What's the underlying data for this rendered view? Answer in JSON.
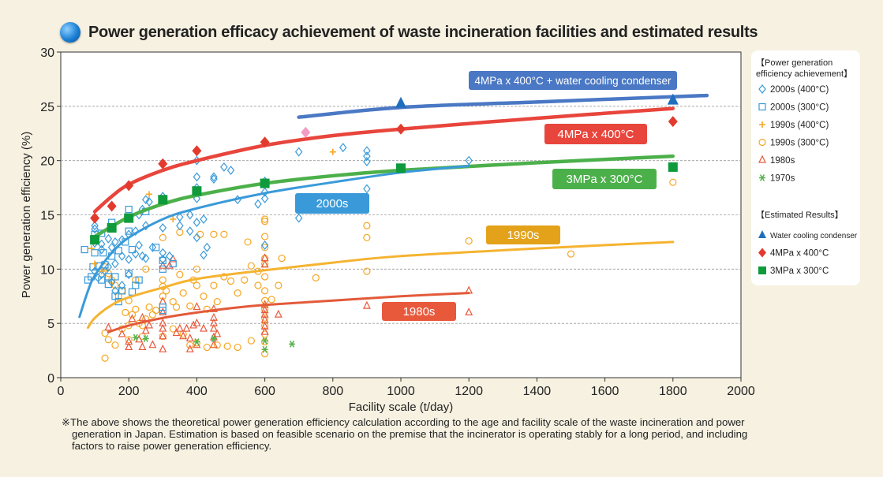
{
  "title": "Power generation efficacy achievement of waste incineration facilities and estimated results",
  "note": {
    "line1": "※The above shows the theoretical power generation efficiency calculation according to the age and facility scale of the waste incineration and power",
    "line2": "generation in Japan. Estimation is based on feasible scenario on the premise that the incinerator is operating stably for a long period, and including",
    "line3": "factors to raise power generation efficiency."
  },
  "chart_data": {
    "type": "scatter",
    "xlabel": "Facility scale (t/day)",
    "ylabel": "Power generation efficiency (%)",
    "xlim": [
      0,
      2000
    ],
    "ylim": [
      0,
      30
    ],
    "xticks": [
      0,
      200,
      400,
      600,
      800,
      1000,
      1200,
      1400,
      1600,
      1800,
      2000
    ],
    "yticks": [
      0,
      5,
      10,
      15,
      20,
      25,
      30
    ],
    "grid": "horizontal dashed",
    "legend_position": "right",
    "legend": {
      "achievement_title": "【Power generation efficiency achievement】",
      "estimated_title": "【Estimated Results】",
      "achievement_items": [
        {
          "key": "s2000_400",
          "label": "2000s (400°C)",
          "marker": "diamond-open",
          "color": "#3a9ad9"
        },
        {
          "key": "s2000_300",
          "label": "2000s (300°C)",
          "marker": "square-open",
          "color": "#3a9ad9"
        },
        {
          "key": "s1990_400",
          "label": "1990s (400°C)",
          "marker": "plus",
          "color": "#f5a623"
        },
        {
          "key": "s1990_300",
          "label": "1990s (300°C)",
          "marker": "circle-open",
          "color": "#f5a623"
        },
        {
          "key": "s1980",
          "label": "1980s",
          "marker": "triangle-open",
          "color": "#e8593c"
        },
        {
          "key": "s1970",
          "label": "1970s",
          "marker": "asterisk",
          "color": "#55b24a"
        }
      ],
      "estimated_items": [
        {
          "key": "est_wc",
          "label": "Water cooling condenser",
          "marker": "triangle",
          "color": "#1f6fbf"
        },
        {
          "key": "est_4",
          "label": "4MPa x 400°C",
          "marker": "diamond",
          "color": "#e23b2e"
        },
        {
          "key": "est_3",
          "label": "3MPa x 300°C",
          "marker": "square",
          "color": "#0f9a3c"
        }
      ]
    },
    "estimated": {
      "water_cooling_condenser": {
        "x": [
          1000,
          1800
        ],
        "y": [
          25.3,
          25.6
        ]
      },
      "mpa4_400": {
        "x": [
          100,
          150,
          200,
          300,
          400,
          600,
          1000,
          1800
        ],
        "y": [
          14.7,
          15.8,
          17.7,
          19.7,
          20.9,
          21.7,
          22.9,
          23.6
        ]
      },
      "mpa3_300": {
        "x": [
          100,
          150,
          200,
          300,
          400,
          600,
          1000,
          1800
        ],
        "y": [
          12.7,
          13.8,
          14.7,
          16.4,
          17.2,
          17.9,
          19.3,
          19.4
        ]
      },
      "highlight_point": {
        "x": 720,
        "y": 22.6
      }
    },
    "achievement": {
      "s2000_400": [
        [
          700,
          20.8
        ],
        [
          830,
          21.2
        ],
        [
          900,
          20.9
        ],
        [
          900,
          20.4
        ],
        [
          900,
          19.9
        ],
        [
          900,
          17.4
        ],
        [
          1200,
          20.0
        ],
        [
          700,
          14.7
        ],
        [
          500,
          19.1
        ],
        [
          480,
          19.4
        ],
        [
          400,
          18.5
        ],
        [
          400,
          17.5
        ],
        [
          450,
          18.5
        ],
        [
          450,
          18.3
        ],
        [
          520,
          16.4
        ],
        [
          600,
          17.1
        ],
        [
          600,
          16.5
        ],
        [
          580,
          16.0
        ],
        [
          300,
          16.7
        ],
        [
          250,
          16.4
        ],
        [
          260,
          16.2
        ],
        [
          240,
          15.5
        ],
        [
          230,
          15.0
        ],
        [
          400,
          16.5
        ],
        [
          380,
          15.0
        ],
        [
          350,
          14.8
        ],
        [
          400,
          14.3
        ],
        [
          350,
          14.0
        ],
        [
          300,
          13.8
        ],
        [
          250,
          14.0
        ],
        [
          220,
          13.5
        ],
        [
          200,
          13.2
        ],
        [
          180,
          12.7
        ],
        [
          160,
          12.5
        ],
        [
          150,
          12.0
        ],
        [
          140,
          12.8
        ],
        [
          120,
          12.3
        ],
        [
          100,
          13.7
        ],
        [
          100,
          14.0
        ],
        [
          120,
          11.8
        ],
        [
          230,
          12.2
        ],
        [
          270,
          12.0
        ],
        [
          300,
          11.5
        ],
        [
          320,
          11.2
        ],
        [
          300,
          10.9
        ],
        [
          250,
          11.0
        ],
        [
          240,
          11.2
        ],
        [
          220,
          11.4
        ],
        [
          200,
          10.9
        ],
        [
          180,
          11.2
        ],
        [
          160,
          10.5
        ],
        [
          140,
          10.2
        ],
        [
          130,
          9.8
        ],
        [
          120,
          9.5
        ],
        [
          110,
          9.2
        ],
        [
          100,
          9.8
        ],
        [
          200,
          9.5
        ],
        [
          180,
          8.5
        ],
        [
          160,
          8.0
        ],
        [
          150,
          8.8
        ],
        [
          400,
          12.9
        ],
        [
          420,
          11.3
        ],
        [
          430,
          12.0
        ],
        [
          600,
          12.2
        ],
        [
          380,
          13.5
        ],
        [
          420,
          14.6
        ],
        [
          100,
          12.4
        ],
        [
          600,
          18.1
        ],
        [
          400,
          20.0
        ]
      ],
      "s2000_300": [
        [
          70,
          11.8
        ],
        [
          80,
          9.0
        ],
        [
          90,
          9.3
        ],
        [
          95,
          10.2
        ],
        [
          100,
          11.5
        ],
        [
          100,
          12.8
        ],
        [
          110,
          10.3
        ],
        [
          120,
          9.0
        ],
        [
          125,
          11.5
        ],
        [
          130,
          10.4
        ],
        [
          140,
          9.3
        ],
        [
          150,
          11.2
        ],
        [
          160,
          9.3
        ],
        [
          170,
          11.7
        ],
        [
          180,
          8.0
        ],
        [
          190,
          12.5
        ],
        [
          200,
          13.5
        ],
        [
          210,
          11.8
        ],
        [
          150,
          14.3
        ],
        [
          120,
          13.3
        ],
        [
          100,
          13.2
        ],
        [
          200,
          9.6
        ],
        [
          210,
          7.9
        ],
        [
          220,
          8.5
        ],
        [
          230,
          9.0
        ],
        [
          300,
          10.0
        ],
        [
          300,
          10.8
        ],
        [
          330,
          10.5
        ],
        [
          300,
          6.2
        ],
        [
          300,
          6.5
        ],
        [
          160,
          7.5
        ],
        [
          170,
          7.0
        ],
        [
          140,
          8.6
        ],
        [
          200,
          15.5
        ],
        [
          250,
          15.3
        ],
        [
          280,
          12.0
        ]
      ],
      "s1990_400": [
        [
          90,
          11.9
        ],
        [
          330,
          14.6
        ],
        [
          800,
          20.8
        ],
        [
          100,
          10.5
        ],
        [
          120,
          9.8
        ],
        [
          260,
          16.9
        ]
      ],
      "s1990_300": [
        [
          130,
          10.2
        ],
        [
          140,
          9.6
        ],
        [
          150,
          9.0
        ],
        [
          160,
          8.5
        ],
        [
          170,
          7.5
        ],
        [
          180,
          8.0
        ],
        [
          190,
          6.0
        ],
        [
          200,
          7.1
        ],
        [
          210,
          5.8
        ],
        [
          220,
          6.3
        ],
        [
          230,
          5.0
        ],
        [
          240,
          4.8
        ],
        [
          250,
          5.4
        ],
        [
          260,
          6.5
        ],
        [
          270,
          5.8
        ],
        [
          280,
          6.2
        ],
        [
          300,
          7.5
        ],
        [
          300,
          8.4
        ],
        [
          300,
          9.0
        ],
        [
          310,
          8.0
        ],
        [
          330,
          7.0
        ],
        [
          340,
          6.5
        ],
        [
          350,
          9.5
        ],
        [
          360,
          7.8
        ],
        [
          380,
          6.6
        ],
        [
          390,
          9.0
        ],
        [
          400,
          10.0
        ],
        [
          400,
          8.5
        ],
        [
          420,
          7.5
        ],
        [
          430,
          6.3
        ],
        [
          450,
          8.5
        ],
        [
          460,
          7.0
        ],
        [
          480,
          9.3
        ],
        [
          500,
          8.9
        ],
        [
          520,
          7.8
        ],
        [
          540,
          9.0
        ],
        [
          560,
          10.3
        ],
        [
          580,
          8.5
        ],
        [
          600,
          14.6
        ],
        [
          600,
          14.4
        ],
        [
          600,
          13.0
        ],
        [
          600,
          12.0
        ],
        [
          600,
          11.0
        ],
        [
          600,
          10.5
        ],
        [
          600,
          9.3
        ],
        [
          600,
          8.0
        ],
        [
          600,
          7.1
        ],
        [
          600,
          6.3
        ],
        [
          600,
          5.5
        ],
        [
          600,
          4.8
        ],
        [
          600,
          4.0
        ],
        [
          600,
          3.3
        ],
        [
          600,
          2.2
        ],
        [
          550,
          12.5
        ],
        [
          480,
          13.2
        ],
        [
          450,
          13.2
        ],
        [
          410,
          13.2
        ],
        [
          350,
          13.4
        ],
        [
          300,
          12.9
        ],
        [
          250,
          10.0
        ],
        [
          220,
          9.0
        ],
        [
          200,
          3.5
        ],
        [
          180,
          4.5
        ],
        [
          160,
          3.0
        ],
        [
          140,
          3.5
        ],
        [
          130,
          4.1
        ],
        [
          130,
          1.8
        ],
        [
          200,
          4.8
        ],
        [
          240,
          3.8
        ],
        [
          300,
          3.8
        ],
        [
          330,
          4.5
        ],
        [
          360,
          4.0
        ],
        [
          380,
          3.0
        ],
        [
          400,
          3.2
        ],
        [
          430,
          2.8
        ],
        [
          460,
          3.0
        ],
        [
          490,
          2.9
        ],
        [
          520,
          2.8
        ],
        [
          560,
          3.4
        ],
        [
          750,
          9.2
        ],
        [
          900,
          14.0
        ],
        [
          900,
          12.9
        ],
        [
          900,
          9.8
        ],
        [
          1200,
          12.6
        ],
        [
          1500,
          11.4
        ],
        [
          1800,
          18.0
        ],
        [
          650,
          11.0
        ],
        [
          640,
          8.5
        ],
        [
          620,
          7.2
        ],
        [
          580,
          9.8
        ]
      ],
      "s1980": [
        [
          140,
          4.6
        ],
        [
          180,
          4.0
        ],
        [
          200,
          3.3
        ],
        [
          200,
          2.8
        ],
        [
          210,
          5.4
        ],
        [
          230,
          3.5
        ],
        [
          240,
          2.8
        ],
        [
          250,
          4.3
        ],
        [
          270,
          3.0
        ],
        [
          300,
          2.6
        ],
        [
          300,
          3.8
        ],
        [
          300,
          4.5
        ],
        [
          300,
          5.0
        ],
        [
          300,
          6.0
        ],
        [
          300,
          7.0
        ],
        [
          320,
          10.3
        ],
        [
          330,
          10.9
        ],
        [
          340,
          4.1
        ],
        [
          360,
          3.8
        ],
        [
          370,
          4.5
        ],
        [
          380,
          2.6
        ],
        [
          380,
          3.6
        ],
        [
          390,
          4.8
        ],
        [
          400,
          5.0
        ],
        [
          400,
          6.5
        ],
        [
          400,
          3.0
        ],
        [
          420,
          4.5
        ],
        [
          450,
          3.0
        ],
        [
          450,
          4.5
        ],
        [
          450,
          5.0
        ],
        [
          450,
          5.5
        ],
        [
          450,
          6.3
        ],
        [
          450,
          3.7
        ],
        [
          460,
          4.0
        ],
        [
          300,
          10.3
        ],
        [
          600,
          11.0
        ],
        [
          600,
          10.4
        ],
        [
          600,
          6.7
        ],
        [
          600,
          6.2
        ],
        [
          600,
          5.8
        ],
        [
          600,
          5.3
        ],
        [
          600,
          4.7
        ],
        [
          600,
          4.2
        ],
        [
          640,
          5.8
        ],
        [
          900,
          6.6
        ],
        [
          1200,
          8.0
        ],
        [
          1200,
          6.0
        ],
        [
          260,
          4.8
        ],
        [
          240,
          5.5
        ],
        [
          350,
          4.5
        ]
      ],
      "s1970": [
        [
          220,
          3.7
        ],
        [
          400,
          3.3
        ],
        [
          450,
          3.6
        ],
        [
          600,
          3.4
        ],
        [
          600,
          2.6
        ],
        [
          680,
          3.1
        ],
        [
          250,
          3.6
        ]
      ]
    },
    "curves": [
      {
        "label": "4MPa x 400°C + water cooling condenser",
        "color": "#4a78c4",
        "x": [
          700,
          1000,
          1400,
          1900
        ],
        "y": [
          24.0,
          24.9,
          25.4,
          26.0
        ]
      },
      {
        "label": "4MPa x 400°C",
        "color": "#e8453c",
        "x": [
          100,
          150,
          200,
          300,
          400,
          600,
          800,
          1000,
          1400,
          1800
        ],
        "y": [
          15.3,
          16.7,
          17.8,
          19.1,
          20.0,
          21.4,
          22.3,
          22.9,
          23.9,
          24.8
        ]
      },
      {
        "label": "3MPa x 300°C",
        "color": "#4cb04a",
        "x": [
          100,
          200,
          300,
          400,
          600,
          800,
          1000,
          1400,
          1800
        ],
        "y": [
          13.0,
          14.8,
          16.0,
          16.8,
          17.9,
          18.6,
          19.1,
          19.8,
          20.4
        ]
      },
      {
        "label": "2000s",
        "color": "#3a9ad9",
        "x": [
          55,
          80,
          100,
          150,
          200,
          300,
          400,
          600,
          800,
          1000,
          1200
        ],
        "y": [
          5.6,
          8.0,
          9.4,
          11.5,
          12.9,
          14.6,
          15.6,
          17.0,
          18.0,
          18.9,
          19.5
        ]
      },
      {
        "label": "1990s",
        "color": "#f5b330",
        "x": [
          80,
          100,
          150,
          200,
          300,
          400,
          600,
          800,
          1000,
          1400,
          1800
        ],
        "y": [
          4.6,
          5.5,
          6.7,
          7.4,
          8.3,
          9.1,
          9.9,
          10.6,
          11.2,
          11.9,
          12.5
        ]
      },
      {
        "label": "1980s",
        "color": "#e35a3a",
        "x": [
          140,
          200,
          300,
          400,
          500,
          600,
          800,
          1000,
          1200
        ],
        "y": [
          4.2,
          4.8,
          5.5,
          6.0,
          6.4,
          6.7,
          7.1,
          7.5,
          7.8
        ]
      }
    ],
    "labels": [
      {
        "text": "4MPa x 400°C + water cooling condenser",
        "bg": "#4a78c4"
      },
      {
        "text": "4MPa x 400°C",
        "bg": "#e8453c"
      },
      {
        "text": "3MPa x 300°C",
        "bg": "#4cb04a"
      },
      {
        "text": "2000s",
        "bg": "#3a9ad9"
      },
      {
        "text": "1990s",
        "bg": "#e3a21a"
      },
      {
        "text": "1980s",
        "bg": "#e8593c"
      }
    ]
  }
}
